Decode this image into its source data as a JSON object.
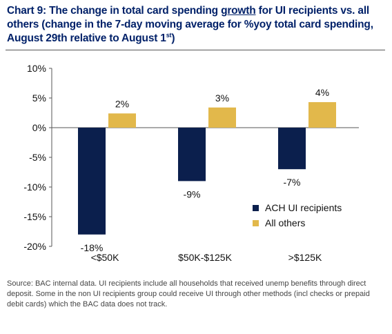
{
  "title": {
    "part1": "Chart 9: The change in total card spending ",
    "underlined": "growth",
    "part2": " for UI recipients vs. all others (change in the 7-day moving average for %yoy total card spending, August 29th relative to August 1",
    "superscript": "st",
    "part3": ")"
  },
  "source_note": "Source: BAC internal data. UI recipients include all households that received unemp benefits through direct deposit. Some in the non UI recipients group could receive UI through other methods (incl checks or prepaid debit cards) which the BAC data does not track.",
  "colors": {
    "ach": "#0b1f4d",
    "others": "#e2b84b",
    "axis": "#555555",
    "title": "#012169"
  },
  "chart_data": {
    "type": "bar",
    "categories": [
      "<$50K",
      "$50K-$125K",
      ">$125K"
    ],
    "series": [
      {
        "name": "ACH UI recipients",
        "values": [
          -18,
          -9,
          -7
        ],
        "data_labels": [
          "-18%",
          "-9%",
          "-7%"
        ],
        "color": "#0b1f4d"
      },
      {
        "name": "All others",
        "values": [
          2.4,
          3.4,
          4.3
        ],
        "data_labels": [
          "2%",
          "3%",
          "4%"
        ],
        "color": "#e2b84b"
      }
    ],
    "ylim": [
      -20,
      10
    ],
    "yticks": [
      10,
      5,
      0,
      -5,
      -10,
      -15,
      -20
    ],
    "ytick_labels": [
      "10%",
      "5%",
      "0%",
      "-5%",
      "-10%",
      "-15%",
      "-20%"
    ],
    "legend_position": "lower-right",
    "grid": false
  }
}
